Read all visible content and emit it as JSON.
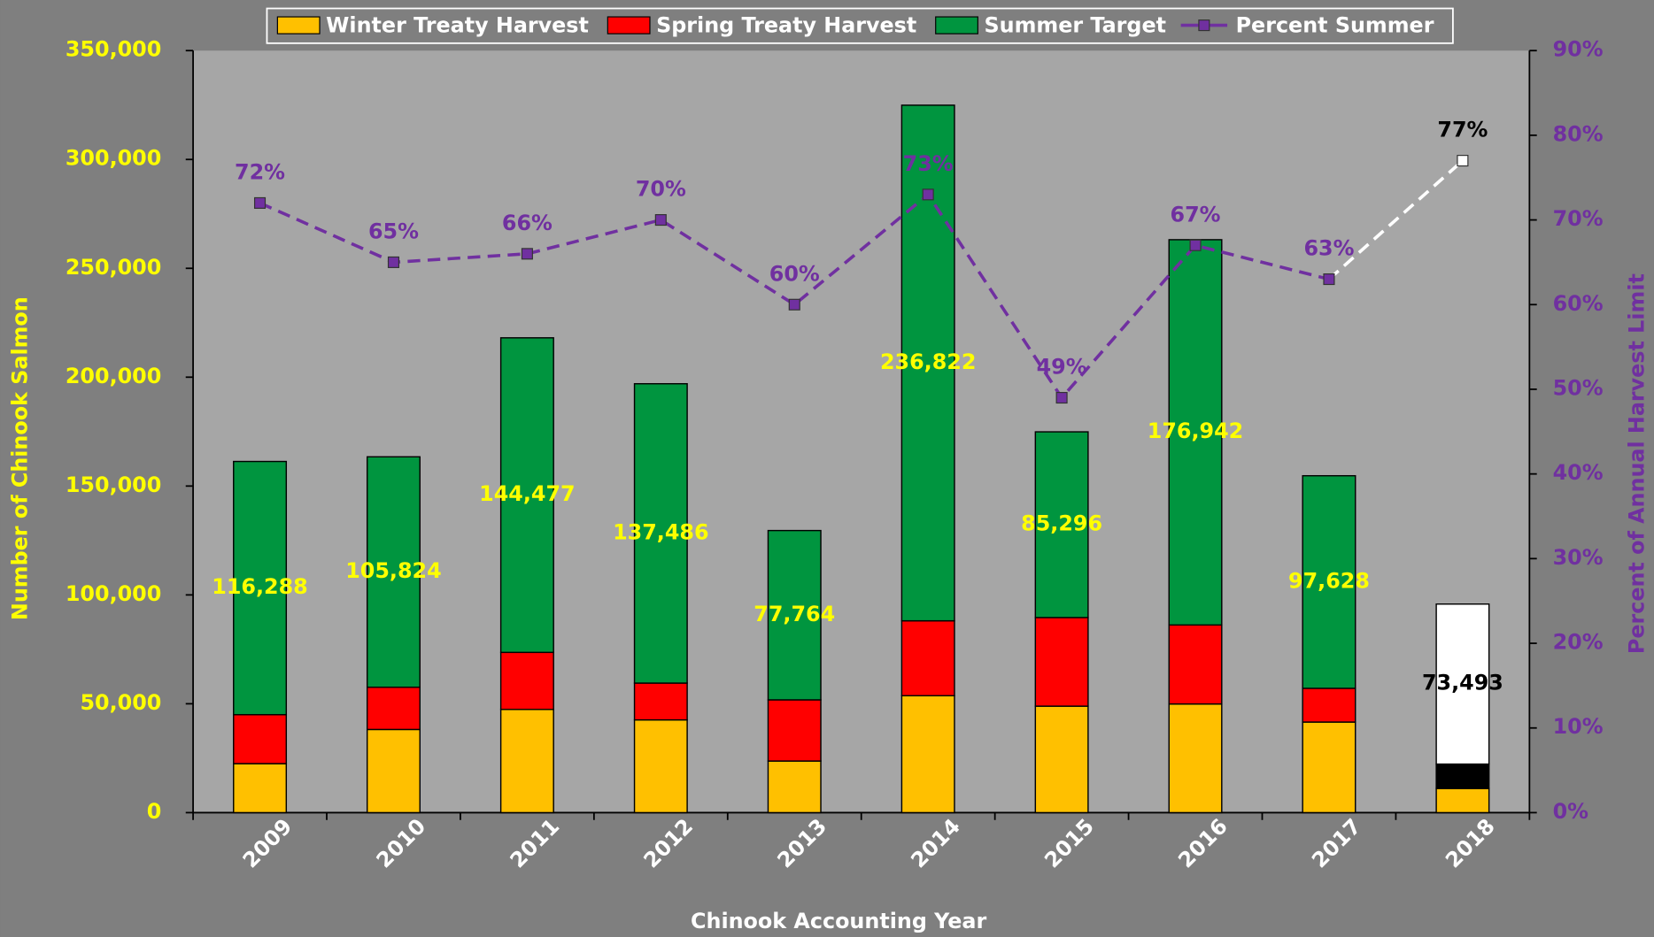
{
  "chart_data": {
    "type": "stacked_bar_line",
    "categories": [
      "2009",
      "2010",
      "2011",
      "2012",
      "2013",
      "2014",
      "2015",
      "2016",
      "2017",
      "2018"
    ],
    "xlabel": "Chinook Accounting Year",
    "ylabel": "Number of Chinook Salmon",
    "y2label": "Percent  of Annual Harvest Limit",
    "ylim": [
      0,
      350000
    ],
    "yticks": [
      0,
      {
        "value": 50000,
        "label": "50,000"
      },
      {
        "value": 100000,
        "label": "100,000"
      },
      {
        "value": 150000,
        "label": "150,000"
      },
      {
        "value": 200000,
        "label": "200,000"
      },
      {
        "value": 250000,
        "label": "250,000"
      },
      {
        "value": 300000,
        "label": "300,000"
      },
      {
        "value": 350000,
        "label": "350,000"
      }
    ],
    "y2lim": [
      0,
      90
    ],
    "y2ticks": [
      {
        "value": 0,
        "label": "0%"
      },
      {
        "value": 10,
        "label": "10%"
      },
      {
        "value": 20,
        "label": "20%"
      },
      {
        "value": 30,
        "label": "30%"
      },
      {
        "value": 40,
        "label": "40%"
      },
      {
        "value": 50,
        "label": "50%"
      },
      {
        "value": 60,
        "label": "60%"
      },
      {
        "value": 70,
        "label": "70%"
      },
      {
        "value": 80,
        "label": "80%"
      },
      {
        "value": 90,
        "label": "90%"
      }
    ],
    "legend": "top",
    "series": [
      {
        "name": "Winter Treaty Harvest",
        "color": "#ffc000",
        "kind": "bar",
        "point_colors": [
          "#ffc000",
          "#ffc000",
          "#ffc000",
          "#ffc000",
          "#ffc000",
          "#ffc000",
          "#ffc000",
          "#ffc000",
          "#ffc000",
          "#ffc000"
        ],
        "values": [
          22500,
          38200,
          47400,
          42600,
          23700,
          53700,
          48900,
          49900,
          41600,
          11100
        ]
      },
      {
        "name": "Spring Treaty Harvest",
        "color": "#ff0000",
        "kind": "bar",
        "point_colors": [
          "#ff0000",
          "#ff0000",
          "#ff0000",
          "#ff0000",
          "#ff0000",
          "#ff0000",
          "#ff0000",
          "#ff0000",
          "#ff0000",
          "#000000"
        ],
        "values": [
          22500,
          19400,
          26200,
          16900,
          28100,
          34400,
          40700,
          36300,
          15500,
          11200
        ]
      },
      {
        "name": "Summer Target",
        "color": "#00953f",
        "kind": "bar",
        "point_colors": [
          "#00953f",
          "#00953f",
          "#00953f",
          "#00953f",
          "#00953f",
          "#00953f",
          "#00953f",
          "#00953f",
          "#00953f",
          "#ffffff"
        ],
        "values": [
          116288,
          105824,
          144477,
          137486,
          77764,
          236822,
          85296,
          176942,
          97628,
          73493
        ],
        "value_labels": [
          "116,288",
          "105,824",
          "144,477",
          "137,486",
          "77,764",
          "236,822",
          "85,296",
          "176,942",
          "97,628",
          "73,493"
        ],
        "value_label_colors": [
          "#ffff00",
          "#ffff00",
          "#ffff00",
          "#ffff00",
          "#ffff00",
          "#ffff00",
          "#ffff00",
          "#ffff00",
          "#ffff00",
          "#000000"
        ]
      },
      {
        "name": "Percent Summer",
        "color": "#7030a0",
        "kind": "line",
        "axis": "y2",
        "point_colors": [
          "#7030a0",
          "#7030a0",
          "#7030a0",
          "#7030a0",
          "#7030a0",
          "#7030a0",
          "#7030a0",
          "#7030a0",
          "#7030a0",
          "#ffffff"
        ],
        "values": [
          72,
          65,
          66,
          70,
          60,
          73,
          49,
          67,
          63,
          77
        ],
        "value_labels": [
          "72%",
          "65%",
          "66%",
          "70%",
          "60%",
          "73%",
          "49%",
          "67%",
          "63%",
          "77%"
        ],
        "value_label_colors": [
          "#7030a0",
          "#7030a0",
          "#7030a0",
          "#7030a0",
          "#7030a0",
          "#7030a0",
          "#7030a0",
          "#7030a0",
          "#7030a0",
          "#000000"
        ]
      }
    ]
  }
}
